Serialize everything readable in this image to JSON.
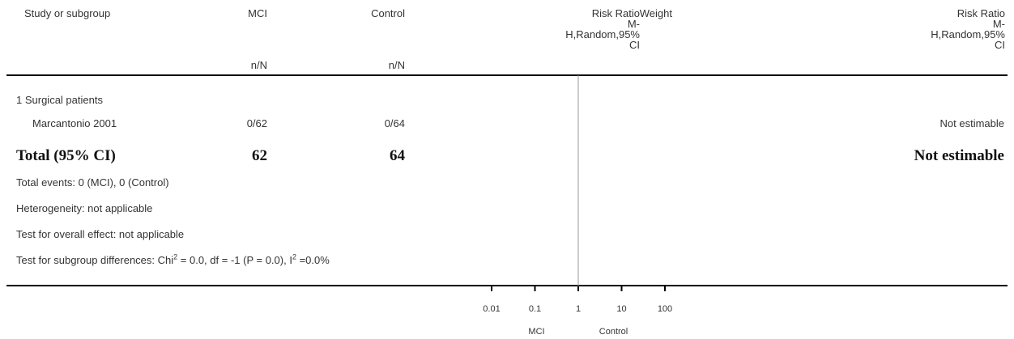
{
  "headers": {
    "study": "Study or subgroup",
    "group1": "MCI",
    "group2": "Control",
    "group1_sub": "n/N",
    "group2_sub": "n/N",
    "rr_col": [
      "Risk Ratio",
      "M-",
      "H,Random,95%",
      "CI"
    ],
    "weight": "Weight",
    "rr_col2": [
      "Risk Ratio",
      "M-",
      "H,Random,95%",
      "CI"
    ]
  },
  "subgroup": "1 Surgical patients",
  "study_row": {
    "name": "Marcantonio 2001",
    "mci": "0/62",
    "control": "0/64",
    "estimate": "Not estimable"
  },
  "total": {
    "label": "Total (95% CI)",
    "mci": "62",
    "control": "64",
    "estimate": "Not estimable"
  },
  "notes": {
    "events": "Total events: 0 (MCI), 0 (Control)",
    "heterogeneity": "Heterogeneity: not applicable",
    "overall": "Test for overall effect: not applicable",
    "subgroup_prefix": "Test for subgroup differences: Chi",
    "subgroup_mid": " = 0.0, df = -1 (P = 0.0), I",
    "subgroup_end": " =0.0%",
    "sup": "2"
  },
  "chart_data": {
    "type": "forest",
    "scale": "log",
    "xlim": [
      0.01,
      100
    ],
    "ticks": [
      0.01,
      0.1,
      1,
      10,
      100
    ],
    "tick_labels": [
      "0.01",
      "0.1",
      "1",
      "10",
      "100"
    ],
    "null_line": 1,
    "favours_left": "MCI",
    "favours_right": "Control",
    "studies": [
      {
        "name": "Marcantonio 2001",
        "events_mci": 0,
        "n_mci": 62,
        "events_control": 0,
        "n_control": 64,
        "estimable": false
      }
    ]
  }
}
